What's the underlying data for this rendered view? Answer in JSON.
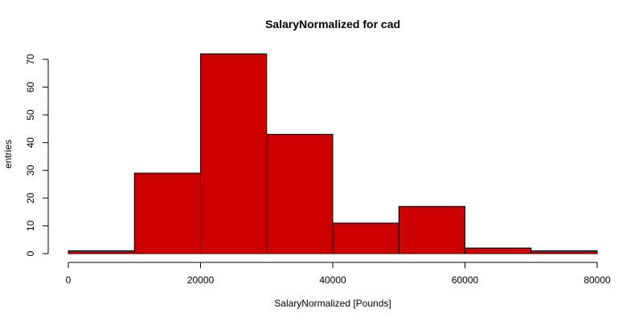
{
  "chart_data": {
    "type": "bar",
    "title": "SalaryNormalized for cad",
    "xlabel": "SalaryNormalized [Pounds]",
    "ylabel": "entries",
    "xlim": [
      0,
      80000
    ],
    "ylim": [
      0,
      70
    ],
    "bin_width": 10000,
    "bins": [
      {
        "start": 0,
        "end": 10000,
        "count": 1
      },
      {
        "start": 10000,
        "end": 20000,
        "count": 29
      },
      {
        "start": 20000,
        "end": 30000,
        "count": 72
      },
      {
        "start": 30000,
        "end": 40000,
        "count": 43
      },
      {
        "start": 40000,
        "end": 50000,
        "count": 11
      },
      {
        "start": 50000,
        "end": 60000,
        "count": 17
      },
      {
        "start": 60000,
        "end": 70000,
        "count": 2
      },
      {
        "start": 70000,
        "end": 80000,
        "count": 1
      }
    ],
    "x_ticks": [
      0,
      20000,
      40000,
      60000,
      80000
    ],
    "y_ticks": [
      0,
      10,
      20,
      30,
      40,
      50,
      60,
      70
    ],
    "bar_color": "#cc0000",
    "grid": false,
    "legend": "none"
  }
}
